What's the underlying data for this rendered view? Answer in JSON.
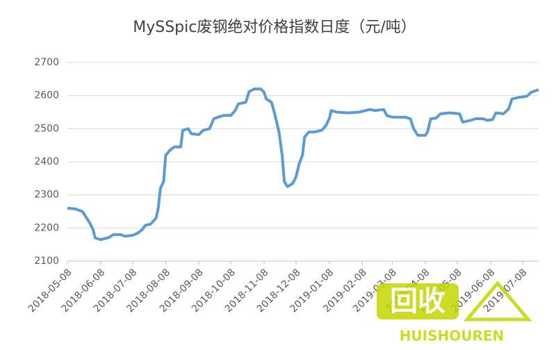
{
  "chart_data": {
    "type": "line",
    "title": "MySSpic废钢绝对价格指数日度（元/吨）",
    "watermark": {
      "logo": "回收",
      "text": "HUISHOUREN"
    },
    "x": [
      "2018-05-08",
      "2018-05-15",
      "2018-05-22",
      "2018-05-25",
      "2018-05-29",
      "2018-06-01",
      "2018-06-03",
      "2018-06-08",
      "2018-06-15",
      "2018-06-20",
      "2018-06-27",
      "2018-07-01",
      "2018-07-08",
      "2018-07-13",
      "2018-07-17",
      "2018-07-20",
      "2018-07-25",
      "2018-07-30",
      "2018-08-01",
      "2018-08-03",
      "2018-08-06",
      "2018-08-08",
      "2018-08-12",
      "2018-08-16",
      "2018-08-22",
      "2018-08-24",
      "2018-08-29",
      "2018-09-01",
      "2018-09-08",
      "2018-09-12",
      "2018-09-18",
      "2018-09-22",
      "2018-09-26",
      "2018-10-01",
      "2018-10-08",
      "2018-10-12",
      "2018-10-15",
      "2018-10-22",
      "2018-10-25",
      "2018-10-30",
      "2018-11-05",
      "2018-11-08",
      "2018-11-10",
      "2018-11-15",
      "2018-11-18",
      "2018-11-22",
      "2018-11-25",
      "2018-11-27",
      "2018-11-30",
      "2018-12-05",
      "2018-12-08",
      "2018-12-11",
      "2018-12-14",
      "2018-12-16",
      "2018-12-20",
      "2018-12-25",
      "2019-01-01",
      "2019-01-05",
      "2019-01-08",
      "2019-01-10",
      "2019-01-15",
      "2019-01-25",
      "2019-02-05",
      "2019-02-15",
      "2019-02-20",
      "2019-02-28",
      "2019-03-03",
      "2019-03-08",
      "2019-03-20",
      "2019-03-25",
      "2019-03-28",
      "2019-04-01",
      "2019-04-08",
      "2019-04-10",
      "2019-04-13",
      "2019-04-18",
      "2019-04-22",
      "2019-05-01",
      "2019-05-10",
      "2019-05-13",
      "2019-05-20",
      "2019-05-25",
      "2019-06-01",
      "2019-06-05",
      "2019-06-10",
      "2019-06-13",
      "2019-06-20",
      "2019-06-25",
      "2019-06-28",
      "2019-07-05",
      "2019-07-12",
      "2019-07-16",
      "2019-07-23"
    ],
    "series": [
      {
        "color": "#5b9bd5",
        "values": [
          2260,
          2258,
          2250,
          2235,
          2215,
          2195,
          2170,
          2165,
          2170,
          2180,
          2180,
          2175,
          2178,
          2185,
          2195,
          2208,
          2212,
          2230,
          2260,
          2320,
          2340,
          2420,
          2435,
          2445,
          2445,
          2495,
          2500,
          2485,
          2482,
          2495,
          2500,
          2530,
          2535,
          2540,
          2540,
          2555,
          2575,
          2580,
          2612,
          2620,
          2620,
          2610,
          2590,
          2580,
          2545,
          2490,
          2420,
          2340,
          2325,
          2335,
          2355,
          2395,
          2420,
          2475,
          2490,
          2490,
          2495,
          2510,
          2530,
          2555,
          2550,
          2548,
          2550,
          2558,
          2555,
          2558,
          2540,
          2535,
          2535,
          2530,
          2500,
          2480,
          2480,
          2490,
          2530,
          2532,
          2545,
          2548,
          2545,
          2520,
          2525,
          2530,
          2530,
          2525,
          2528,
          2548,
          2545,
          2560,
          2590,
          2595,
          2598,
          2610,
          2618
        ]
      }
    ],
    "xlim": [
      "2018-05-08",
      "2019-07-23"
    ],
    "xticks": [
      "2018-05-08",
      "2018-06-08",
      "2018-07-08",
      "2018-08-08",
      "2018-09-08",
      "2018-10-08",
      "2018-11-08",
      "2018-12-08",
      "2019-01-08",
      "2019-02-08",
      "2019-03-08",
      "2019-04-08",
      "2019-05-08",
      "2019-06-08",
      "2019-07-08"
    ],
    "ylim": [
      2100,
      2700
    ],
    "yticks": [
      2100,
      2200,
      2300,
      2400,
      2500,
      2600,
      2700
    ],
    "grid": true
  }
}
